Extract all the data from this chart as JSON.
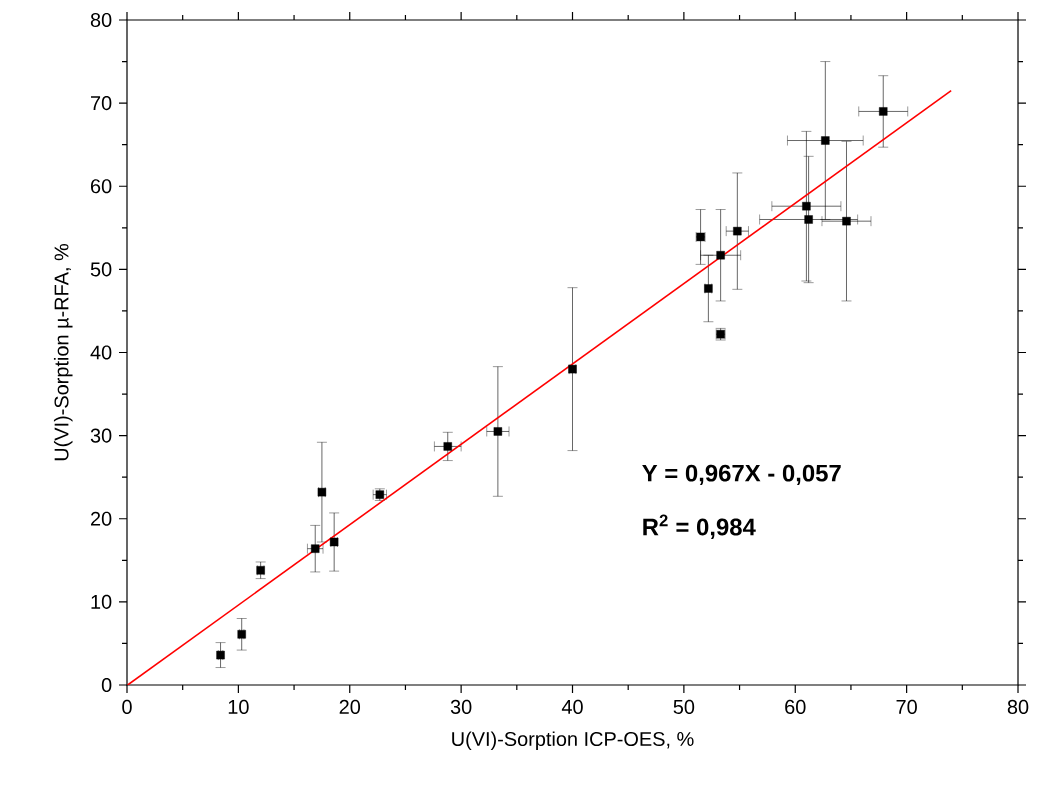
{
  "chart_data": {
    "type": "scatter",
    "xlabel": "U(VI)-Sorption ICP-OES, %",
    "ylabel": "U(VI)-Sorption µ-RFA, %",
    "xlim": [
      0,
      80
    ],
    "ylim": [
      0,
      80
    ],
    "xticks": [
      0,
      10,
      20,
      30,
      40,
      50,
      60,
      70,
      80
    ],
    "yticks": [
      0,
      10,
      20,
      30,
      40,
      50,
      60,
      70,
      80
    ],
    "series": [
      {
        "type": "scatter",
        "color": "#000000",
        "marker": "square",
        "x": [
          8.4,
          10.3,
          12.0,
          16.9,
          17.5,
          18.6,
          22.7,
          28.8,
          33.3,
          40.0,
          51.5,
          52.2,
          53.3,
          53.3,
          54.8,
          61.0,
          61.2,
          62.7,
          64.6,
          67.9
        ],
        "values": [
          3.6,
          6.1,
          13.8,
          16.4,
          23.2,
          17.2,
          22.9,
          28.7,
          30.5,
          38.0,
          53.9,
          47.7,
          51.7,
          42.2,
          54.6,
          57.6,
          56.0,
          65.5,
          55.8,
          69.0
        ],
        "errors": [
          1.5,
          1.9,
          1.0,
          2.8,
          6.0,
          3.5,
          0.7,
          1.7,
          7.8,
          9.8,
          3.3,
          4.0,
          5.5,
          0.7,
          7.0,
          9.0,
          7.6,
          9.5,
          9.6,
          4.3
        ],
        "xerrors": [
          0.2,
          0.2,
          0.3,
          0.7,
          0.3,
          0.3,
          0.6,
          1.2,
          1.0,
          0.3,
          0.4,
          0.3,
          1.8,
          0.4,
          1.0,
          3.1,
          4.4,
          3.4,
          2.2,
          2.2
        ]
      },
      {
        "type": "line",
        "color": "#ff0000",
        "marker": "none",
        "x": [
          0.06,
          74
        ],
        "values": [
          0,
          71.5
        ]
      }
    ],
    "annotations": [
      "Y = 0,967X - 0,057",
      "R$^{2}$ = 0,984"
    ]
  }
}
